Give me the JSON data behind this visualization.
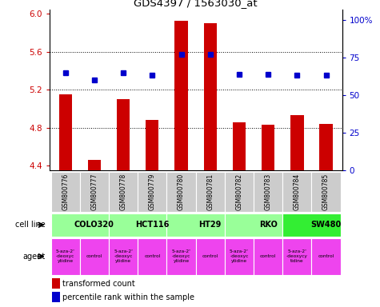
{
  "title": "GDS4397 / 1563030_at",
  "samples": [
    "GSM800776",
    "GSM800777",
    "GSM800778",
    "GSM800779",
    "GSM800780",
    "GSM800781",
    "GSM800782",
    "GSM800783",
    "GSM800784",
    "GSM800785"
  ],
  "transformed_counts": [
    5.15,
    4.46,
    5.1,
    4.88,
    5.93,
    5.9,
    4.86,
    4.83,
    4.93,
    4.84
  ],
  "percentile_ranks": [
    65,
    60,
    65,
    63,
    77,
    77,
    64,
    64,
    63,
    63
  ],
  "ylim": [
    4.35,
    6.05
  ],
  "yticks": [
    4.4,
    4.8,
    5.2,
    5.6,
    6.0
  ],
  "right_yticks": [
    0,
    25,
    50,
    75,
    100
  ],
  "right_ylim": [
    0,
    107
  ],
  "bar_color": "#cc0000",
  "dot_color": "#0000cc",
  "cell_lines": [
    {
      "name": "COLO320",
      "start": 0,
      "end": 2,
      "color": "#99ff99"
    },
    {
      "name": "HCT116",
      "start": 2,
      "end": 4,
      "color": "#99ff99"
    },
    {
      "name": "HT29",
      "start": 4,
      "end": 6,
      "color": "#99ff99"
    },
    {
      "name": "RKO",
      "start": 6,
      "end": 8,
      "color": "#99ff99"
    },
    {
      "name": "SW480",
      "start": 8,
      "end": 10,
      "color": "#33ee33"
    }
  ],
  "agent_labels": [
    "5-aza-2'\n-deoxyc\nytidine",
    "control",
    "5-aza-2'\n-deoxyc\nytidine",
    "control",
    "5-aza-2'\n-deoxyc\nytidine",
    "control",
    "5-aza-2'\n-deoxyc\nytidine",
    "control",
    "5-aza-2'\n-deoxycy\ntidine",
    "control"
  ],
  "agent_color": "#ee44ee",
  "sample_bg_color": "#cccccc",
  "bar_width": 0.45,
  "grid_yticks": [
    4.8,
    5.2,
    5.6
  ]
}
